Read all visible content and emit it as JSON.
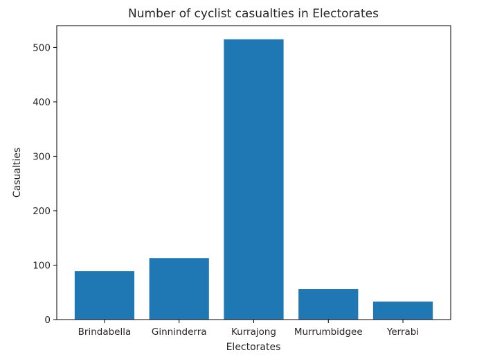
{
  "chart_data": {
    "type": "bar",
    "title": "Number of cyclist casualties in Electorates",
    "xlabel": "Electorates",
    "ylabel": "Casualties",
    "categories": [
      "Brindabella",
      "Ginninderra",
      "Kurrajong",
      "Murrumbidgee",
      "Yerrabi"
    ],
    "values": [
      89,
      113,
      515,
      56,
      33
    ],
    "ylim": [
      0,
      540
    ],
    "yticks": [
      0,
      100,
      200,
      300,
      400,
      500
    ],
    "grid": false,
    "bar_color": "#1f77b4"
  }
}
